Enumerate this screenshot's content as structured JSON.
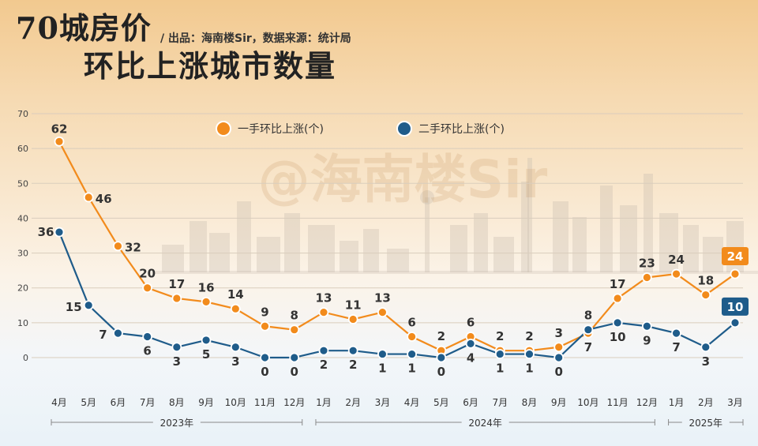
{
  "header": {
    "title_line1": "70城房价",
    "title_line2": "环比上涨城市数量",
    "source": "/ 出品：海南楼Sir，数据来源：统计局"
  },
  "watermark": "@海南楼Sir",
  "colors": {
    "series1": "#f28b1c",
    "series2": "#1f5c8a",
    "grid": "#d9cdbd"
  },
  "chart_data": {
    "type": "line",
    "categories": [
      "4月",
      "5月",
      "6月",
      "7月",
      "8月",
      "9月",
      "10月",
      "11月",
      "12月",
      "1月",
      "2月",
      "3月",
      "4月",
      "5月",
      "6月",
      "7月",
      "8月",
      "9月",
      "10月",
      "11月",
      "12月",
      "1月",
      "2月",
      "3月"
    ],
    "series": [
      {
        "name": "一手环比上涨(个)",
        "values": [
          62,
          46,
          32,
          20,
          17,
          16,
          14,
          9,
          8,
          13,
          11,
          13,
          6,
          2,
          6,
          2,
          2,
          3,
          7,
          17,
          23,
          24,
          18,
          24
        ]
      },
      {
        "name": "二手环比上涨(个)",
        "values": [
          36,
          15,
          7,
          6,
          3,
          5,
          3,
          0,
          0,
          2,
          2,
          1,
          1,
          0,
          4,
          1,
          1,
          0,
          8,
          10,
          9,
          7,
          3,
          10
        ]
      }
    ],
    "ylim": [
      0,
      70
    ],
    "yticks": [
      0,
      10,
      20,
      30,
      40,
      50,
      60,
      70
    ],
    "grid": true,
    "legend": "top-center",
    "year_groups": [
      {
        "label": "2023年",
        "from": 0,
        "to": 8
      },
      {
        "label": "2024年",
        "from": 9,
        "to": 20
      },
      {
        "label": "2025年",
        "from": 21,
        "to": 23
      }
    ]
  }
}
